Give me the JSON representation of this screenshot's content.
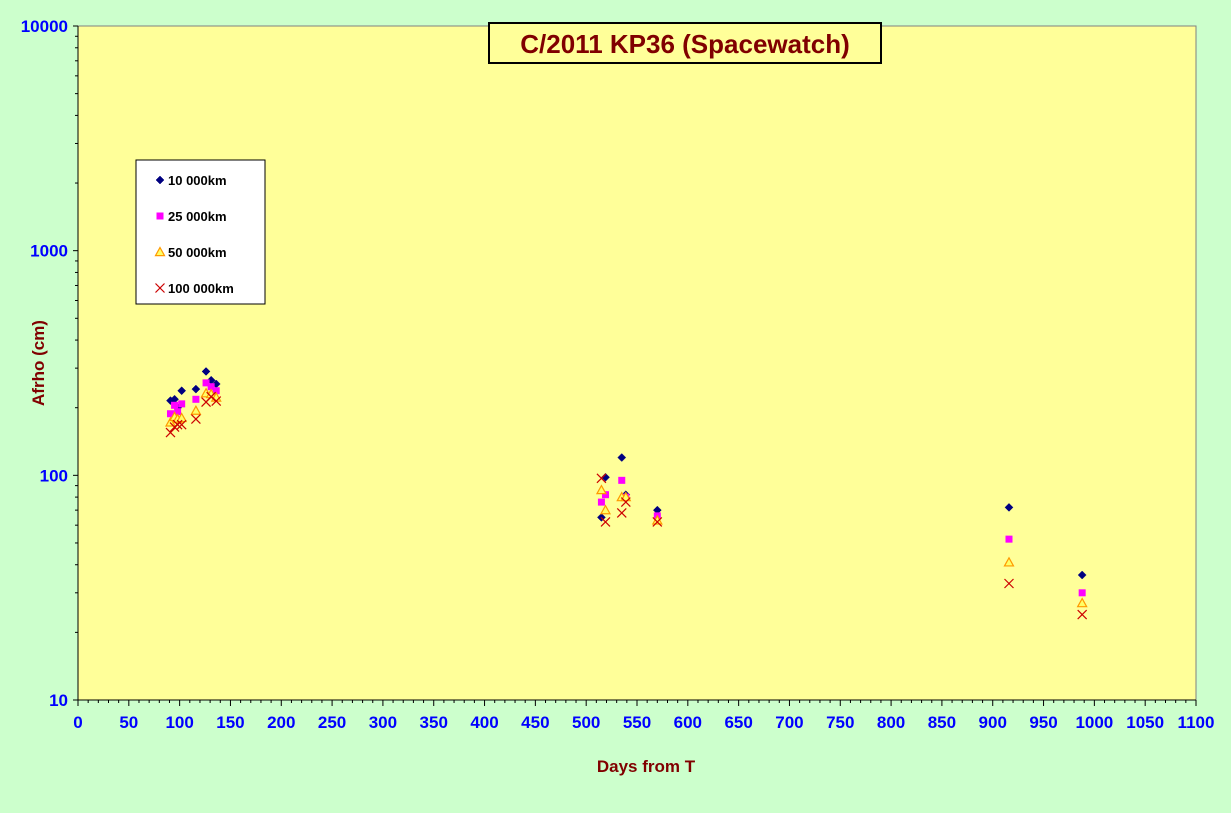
{
  "chart_data": {
    "type": "scatter",
    "title": "C/2011 KP36 (Spacewatch)",
    "xlabel": "Days from T",
    "ylabel": "Afrho (cm)",
    "xlim": [
      0,
      1100
    ],
    "ylim": [
      10,
      10000
    ],
    "yscale": "log",
    "x_ticks": [
      "0",
      "50",
      "100",
      "150",
      "200",
      "250",
      "300",
      "350",
      "400",
      "450",
      "500",
      "550",
      "600",
      "650",
      "700",
      "750",
      "800",
      "850",
      "900",
      "950",
      "1000",
      "1050",
      "1100"
    ],
    "y_ticks": [
      "10",
      "100",
      "1000",
      "10000"
    ],
    "grid": false,
    "legend_position": "top-left",
    "series": [
      {
        "name": "10 000km",
        "color": "#000080",
        "marker": "diamond",
        "points": [
          [
            91,
            215
          ],
          [
            95,
            218
          ],
          [
            98,
            200
          ],
          [
            102,
            238
          ],
          [
            116,
            242
          ],
          [
            126,
            290
          ],
          [
            131,
            265
          ],
          [
            136,
            255
          ],
          [
            515,
            65
          ],
          [
            519,
            98
          ],
          [
            535,
            120
          ],
          [
            539,
            82
          ],
          [
            570,
            70
          ],
          [
            916,
            72
          ],
          [
            988,
            36
          ]
        ]
      },
      {
        "name": "25 000km",
        "color": "#ff00ff",
        "marker": "square",
        "points": [
          [
            91,
            188
          ],
          [
            95,
            205
          ],
          [
            98,
            192
          ],
          [
            102,
            208
          ],
          [
            116,
            218
          ],
          [
            126,
            258
          ],
          [
            131,
            248
          ],
          [
            136,
            238
          ],
          [
            515,
            76
          ],
          [
            519,
            82
          ],
          [
            535,
            95
          ],
          [
            539,
            80
          ],
          [
            570,
            66
          ],
          [
            916,
            52
          ],
          [
            988,
            30
          ]
        ]
      },
      {
        "name": "50 000km",
        "color": "#ff9900",
        "marker": "triangle",
        "points": [
          [
            91,
            172
          ],
          [
            95,
            182
          ],
          [
            98,
            178
          ],
          [
            102,
            180
          ],
          [
            116,
            194
          ],
          [
            126,
            232
          ],
          [
            131,
            230
          ],
          [
            136,
            222
          ],
          [
            515,
            86
          ],
          [
            519,
            70
          ],
          [
            535,
            80
          ],
          [
            539,
            80
          ],
          [
            570,
            63
          ],
          [
            916,
            41
          ],
          [
            988,
            27
          ]
        ]
      },
      {
        "name": "100 000km",
        "color": "#cc0000",
        "marker": "x",
        "points": [
          [
            91,
            155
          ],
          [
            95,
            164
          ],
          [
            98,
            168
          ],
          [
            102,
            168
          ],
          [
            116,
            178
          ],
          [
            126,
            212
          ],
          [
            131,
            224
          ],
          [
            136,
            214
          ],
          [
            515,
            97
          ],
          [
            519,
            62
          ],
          [
            535,
            68
          ],
          [
            539,
            76
          ],
          [
            570,
            62
          ],
          [
            916,
            33
          ],
          [
            988,
            24
          ]
        ]
      }
    ]
  }
}
